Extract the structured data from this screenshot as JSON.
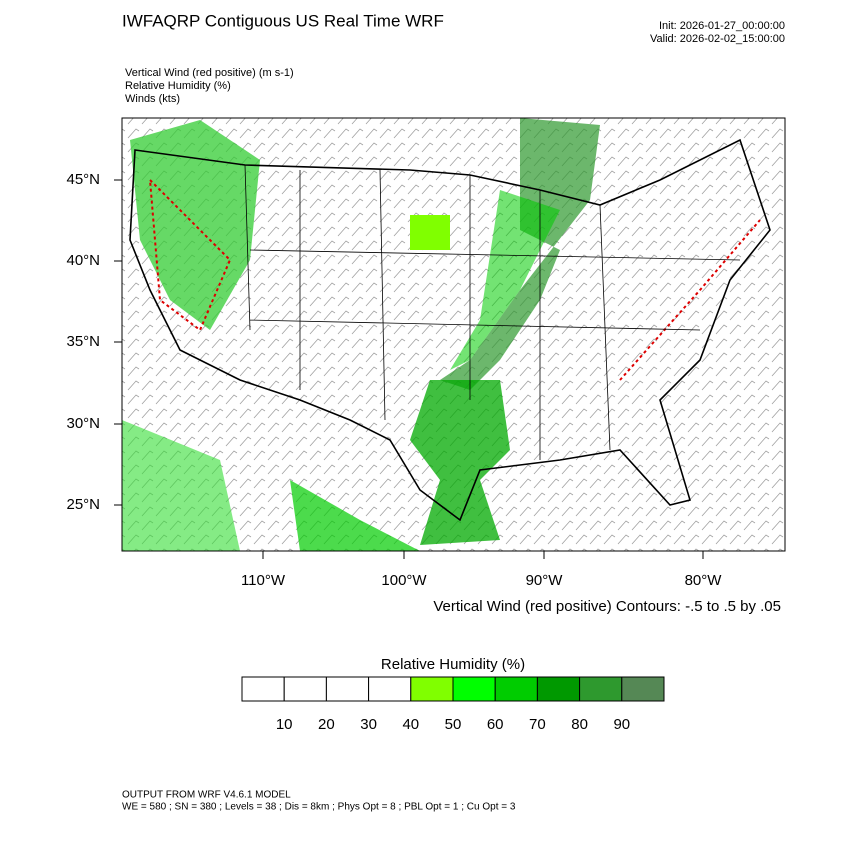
{
  "header": {
    "title": "IWFAQRP Contiguous US Real Time WRF",
    "init": "Init: 2026-01-27_00:00:00",
    "valid": "Valid: 2026-02-02_15:00:00"
  },
  "fields": [
    "Vertical Wind (red positive)   (m s-1)",
    "Relative Humidity   (%)",
    "Winds   (kts)"
  ],
  "map": {
    "lat_labels": [
      "45°N",
      "40°N",
      "35°N",
      "30°N",
      "25°N"
    ],
    "lon_labels": [
      "110°W",
      "100°W",
      "90°W",
      "80°W"
    ],
    "contour_note": "Vertical Wind (red positive) Contours: -.5 to .5 by .05"
  },
  "colorbar": {
    "title": "Relative Humidity  (%)",
    "labels": [
      10,
      20,
      30,
      40,
      50,
      60,
      70,
      80,
      90
    ],
    "colors": [
      "#ffffff",
      "#ffffff",
      "#ffffff",
      "#ffffff",
      "#80ff00",
      "#00ff00",
      "#00cc00",
      "#009900",
      "#2e992e",
      "#558855"
    ]
  },
  "footer": [
    "OUTPUT FROM WRF V4.6.1 MODEL",
    "WE = 580 ; SN = 380 ; Levels = 38 ; Dis = 8km ; Phys Opt = 8 ; PBL Opt = 1 ; Cu Opt = 3"
  ]
}
